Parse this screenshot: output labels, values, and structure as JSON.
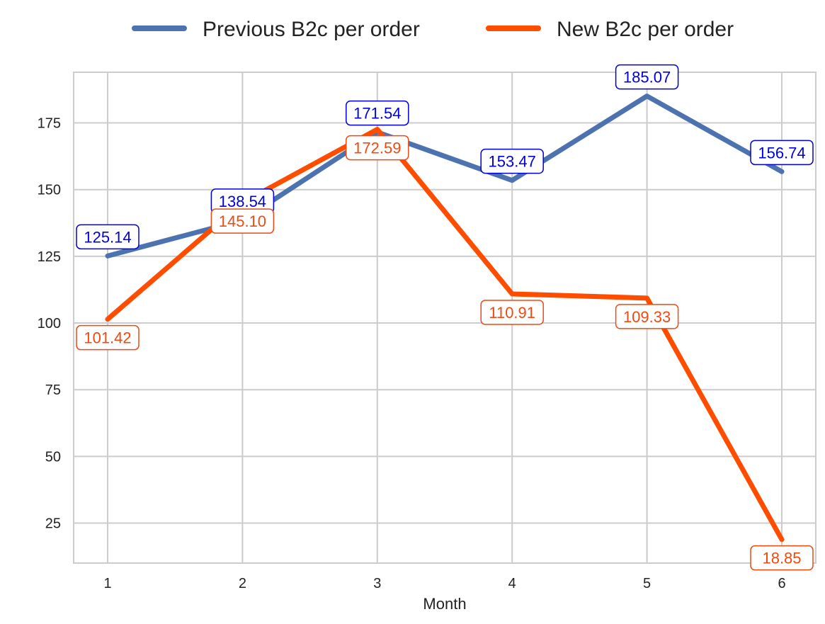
{
  "chart_data": {
    "type": "line",
    "title": "",
    "xlabel": "Month",
    "ylabel": "",
    "categories": [
      1,
      2,
      3,
      4,
      5,
      6
    ],
    "category_labels": [
      "1",
      "2",
      "3",
      "4",
      "5",
      "6"
    ],
    "ylim": [
      10,
      194
    ],
    "yticks": [
      25,
      50,
      75,
      100,
      125,
      150,
      175
    ],
    "ytick_labels": [
      "25",
      "50",
      "75",
      "100",
      "125",
      "150",
      "175"
    ],
    "grid": true,
    "legend": {
      "placement": "top-center"
    },
    "series": [
      {
        "name": "Previous B2c per order",
        "color": "#4c72b0",
        "label_color": "#0000dd",
        "values": [
          125.14,
          138.54,
          171.54,
          153.47,
          185.07,
          156.74
        ],
        "labels": [
          "125.14",
          "138.54",
          "171.54",
          "153.47",
          "185.07",
          "156.74"
        ]
      },
      {
        "name": "New B2c per order",
        "color": "#ff4d00",
        "label_color": "#ee4a12",
        "values": [
          101.42,
          145.1,
          172.59,
          110.91,
          109.33,
          18.85
        ],
        "labels": [
          "101.42",
          "145.10",
          "172.59",
          "110.91",
          "109.33",
          "18.85"
        ]
      }
    ]
  }
}
